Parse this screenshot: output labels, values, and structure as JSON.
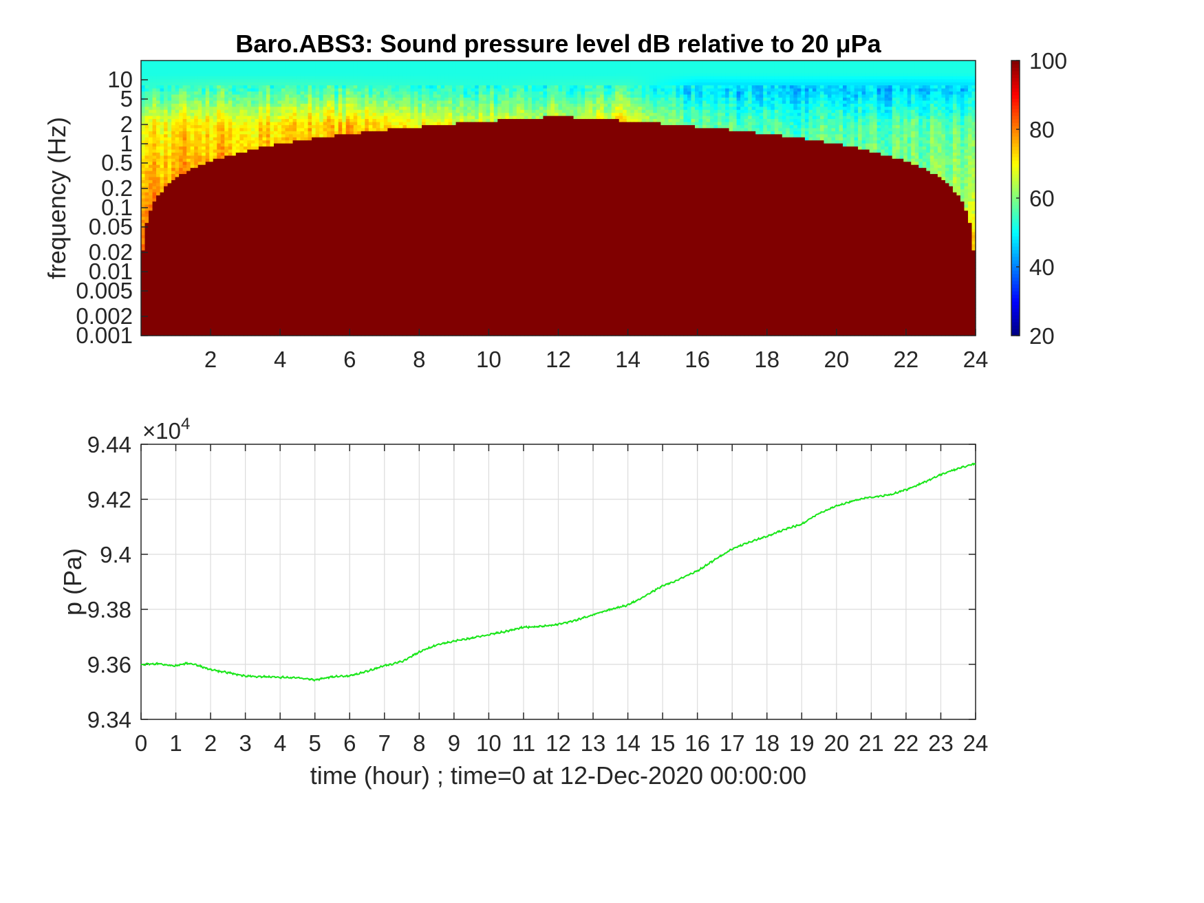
{
  "colors": {
    "line": "#19e619",
    "grid": "#dcdcdc",
    "axis": "#262626",
    "background": "#ffffff"
  },
  "chart_data": [
    {
      "type": "heatmap",
      "title": "Baro.ABS3: Sound pressure level dB relative to 20 μPa",
      "xlabel": "",
      "ylabel": "frequency (Hz)",
      "xlim": [
        0,
        24
      ],
      "x_ticks": [
        2,
        4,
        6,
        8,
        10,
        12,
        14,
        16,
        18,
        20,
        22,
        24
      ],
      "x_tick_labels": [
        "2",
        "4",
        "6",
        "8",
        "10",
        "12",
        "14",
        "16",
        "18",
        "20",
        "22",
        "24"
      ],
      "y_scale": "log",
      "ylim": [
        0.001,
        20
      ],
      "y_ticks": [
        0.001,
        0.002,
        0.005,
        0.01,
        0.02,
        0.05,
        0.1,
        0.2,
        0.5,
        1,
        2,
        5,
        10
      ],
      "y_tick_labels": [
        "0.001",
        "0.002",
        "0.005",
        "0.01",
        "0.02",
        "0.05",
        "0.1",
        "0.2",
        "0.5",
        "1",
        "2",
        "5",
        "10"
      ],
      "colormap": "jet",
      "clim": [
        20,
        100
      ],
      "colorbar_ticks": [
        20,
        40,
        60,
        80,
        100
      ],
      "colorbar_tick_labels": [
        "20",
        "40",
        "60",
        "80",
        "100"
      ],
      "hour_levels": {
        "x": [
          0,
          2,
          4,
          6,
          8,
          10,
          12,
          14,
          16,
          18,
          20,
          22,
          24
        ],
        "low_band_db": [
          88,
          88,
          88,
          88,
          87,
          86,
          86,
          87,
          86,
          85,
          85,
          86,
          88
        ],
        "mid_band_db": [
          80,
          82,
          82,
          81,
          76,
          74,
          74,
          74,
          63,
          62,
          63,
          62,
          63
        ],
        "upper_band_db": [
          70,
          72,
          72,
          74,
          70,
          68,
          68,
          72,
          56,
          56,
          56,
          56,
          56
        ],
        "top_band_db": [
          54,
          56,
          56,
          55,
          54,
          53,
          54,
          55,
          46,
          46,
          46,
          45,
          46
        ]
      },
      "cone_db": 100
    },
    {
      "type": "line",
      "title": "",
      "xlabel": "time (hour) ; time=0 at 12-Dec-2020 00:00:00",
      "ylabel": "p (Pa)",
      "y_exponent_label": "×10",
      "y_exponent_power": "4",
      "xlim": [
        0,
        24
      ],
      "ylim": [
        93400,
        94400
      ],
      "grid": true,
      "x_ticks": [
        0,
        1,
        2,
        3,
        4,
        5,
        6,
        7,
        8,
        9,
        10,
        11,
        12,
        13,
        14,
        15,
        16,
        17,
        18,
        19,
        20,
        21,
        22,
        23,
        24
      ],
      "x_tick_labels": [
        "0",
        "1",
        "2",
        "3",
        "4",
        "5",
        "6",
        "7",
        "8",
        "9",
        "10",
        "11",
        "12",
        "13",
        "14",
        "15",
        "16",
        "17",
        "18",
        "19",
        "20",
        "21",
        "22",
        "23",
        "24"
      ],
      "y_ticks": [
        93400,
        93600,
        93800,
        94000,
        94200,
        94400
      ],
      "y_tick_labels": [
        "9.34",
        "9.36",
        "9.38",
        "9.4",
        "9.42",
        "9.44"
      ],
      "series": [
        {
          "color": "#19e619",
          "x": [
            0,
            0.5,
            1,
            1.3,
            1.6,
            2,
            2.5,
            3,
            3.5,
            4,
            4.5,
            5,
            5.5,
            6,
            6.5,
            7,
            7.5,
            8,
            8.5,
            9,
            9.5,
            10,
            10.5,
            11,
            11.5,
            12,
            12.5,
            13,
            13.5,
            14,
            14.5,
            15,
            15.5,
            16,
            16.5,
            17,
            17.5,
            18,
            18.5,
            19,
            19.5,
            20,
            20.5,
            21,
            21.5,
            22,
            22.5,
            23,
            23.5,
            24
          ],
          "y": [
            93600,
            93602,
            93595,
            93604,
            93598,
            93580,
            93570,
            93558,
            93555,
            93553,
            93552,
            93543,
            93555,
            93558,
            93575,
            93595,
            93610,
            93645,
            93670,
            93685,
            93695,
            93708,
            93720,
            93735,
            93738,
            93745,
            93760,
            93780,
            93800,
            93815,
            93850,
            93885,
            93910,
            93940,
            93980,
            94020,
            94045,
            94065,
            94090,
            94110,
            94150,
            94175,
            94195,
            94208,
            94215,
            94235,
            94260,
            94290,
            94312,
            94330
          ]
        }
      ]
    }
  ]
}
